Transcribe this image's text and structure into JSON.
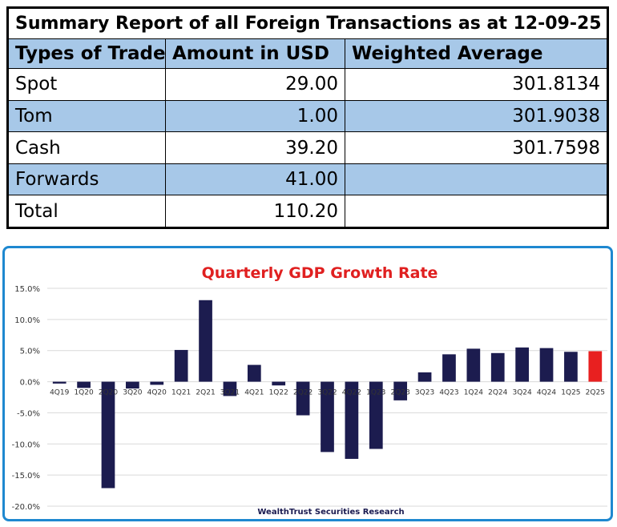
{
  "summary_table": {
    "title": "Summary Report of all Foreign Transactions as at 12-09-25",
    "headers": [
      "Types of Trade",
      "Amount in USD",
      "Weighted Average"
    ],
    "rows": [
      {
        "type": "Spot",
        "amount": "29.00",
        "weighted_average": "301.8134"
      },
      {
        "type": "Tom",
        "amount": "1.00",
        "weighted_average": "301.9038"
      },
      {
        "type": "Cash",
        "amount": "39.20",
        "weighted_average": "301.7598"
      },
      {
        "type": "Forwards",
        "amount": "41.00",
        "weighted_average": ""
      },
      {
        "type": "Total",
        "amount": "110.20",
        "weighted_average": ""
      }
    ],
    "shade_color": "#a7c8e8"
  },
  "chart_data": {
    "type": "bar",
    "title": "Quarterly GDP Growth Rate",
    "source": "WealthTrust Securities Research",
    "categories": [
      "4Q19",
      "1Q20",
      "2Q20",
      "3Q20",
      "4Q20",
      "1Q21",
      "2Q21",
      "3Q21",
      "4Q21",
      "1Q22",
      "2Q22",
      "3Q22",
      "4Q22",
      "1Q23",
      "2Q23",
      "3Q23",
      "4Q23",
      "1Q24",
      "2Q24",
      "3Q24",
      "4Q24",
      "1Q25",
      "2Q25"
    ],
    "values": [
      -0.3,
      -1.0,
      -17.1,
      -1.1,
      -0.5,
      5.1,
      13.1,
      -2.3,
      2.7,
      -0.6,
      -5.4,
      -11.3,
      -12.4,
      -10.8,
      -3.0,
      1.5,
      4.4,
      5.3,
      4.6,
      5.5,
      5.4,
      4.8,
      4.9
    ],
    "yticks": [
      "15.0%",
      "10.0%",
      "5.0%",
      "0.0%",
      "-5.0%",
      "-10.0%",
      "-15.0%",
      "-20.0%"
    ],
    "ylim": [
      -20,
      15
    ],
    "grid": true,
    "bar_color": "#1c1c4f",
    "highlight_color": "#e82020",
    "highlight_index": 22,
    "frame_color": "#1e88d0"
  }
}
